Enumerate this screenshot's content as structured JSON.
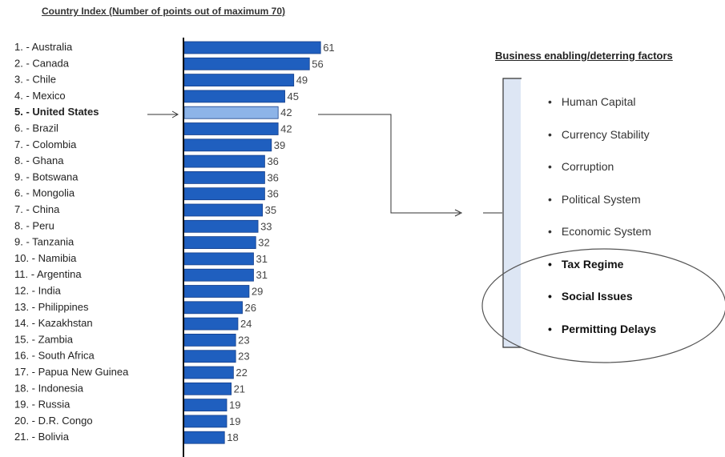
{
  "chart_data": {
    "type": "bar",
    "orientation": "horizontal",
    "title": "Country Index (Number of points out of maximum 70)",
    "categories": [
      "1. - Australia",
      "2. - Canada",
      "3. - Chile",
      "4. - Mexico",
      "5. - United States",
      "6. - Brazil",
      "7. - Colombia",
      "8. - Ghana",
      "9. - Botswana",
      "6. - Mongolia",
      "7. - China",
      "8. - Peru",
      "9. - Tanzania",
      "10. - Namibia",
      "11. - Argentina",
      "12. - India",
      "13. - Philippines",
      "14. - Kazakhstan",
      "15. - Zambia",
      "16. - South Africa",
      "17. - Papua New Guinea",
      "18. - Indonesia",
      "19. - Russia",
      "20. - D.R. Congo",
      "21. - Bolivia"
    ],
    "values": [
      61,
      56,
      49,
      45,
      42,
      42,
      39,
      36,
      36,
      36,
      35,
      33,
      32,
      31,
      31,
      29,
      26,
      24,
      23,
      23,
      22,
      21,
      19,
      19,
      18
    ],
    "highlight_index": 4,
    "xlim": [
      0,
      70
    ],
    "grid": false,
    "colors": {
      "bar": "#1f5fbf",
      "bar_edge": "#163f8a",
      "highlight": "#8db4e8",
      "axis": "#111111",
      "value_label": "#444444"
    }
  },
  "factors_panel": {
    "title": "Business enabling/deterring factors",
    "bullet": "•",
    "items": [
      {
        "label": "Human Capital",
        "emphasized": false
      },
      {
        "label": "Currency Stability",
        "emphasized": false
      },
      {
        "label": "Corruption",
        "emphasized": false
      },
      {
        "label": "Political System",
        "emphasized": false
      },
      {
        "label": "Economic System",
        "emphasized": false
      },
      {
        "label": "Tax Regime",
        "emphasized": true
      },
      {
        "label": "Social Issues",
        "emphasized": true
      },
      {
        "label": "Permitting Delays",
        "emphasized": true
      }
    ]
  }
}
